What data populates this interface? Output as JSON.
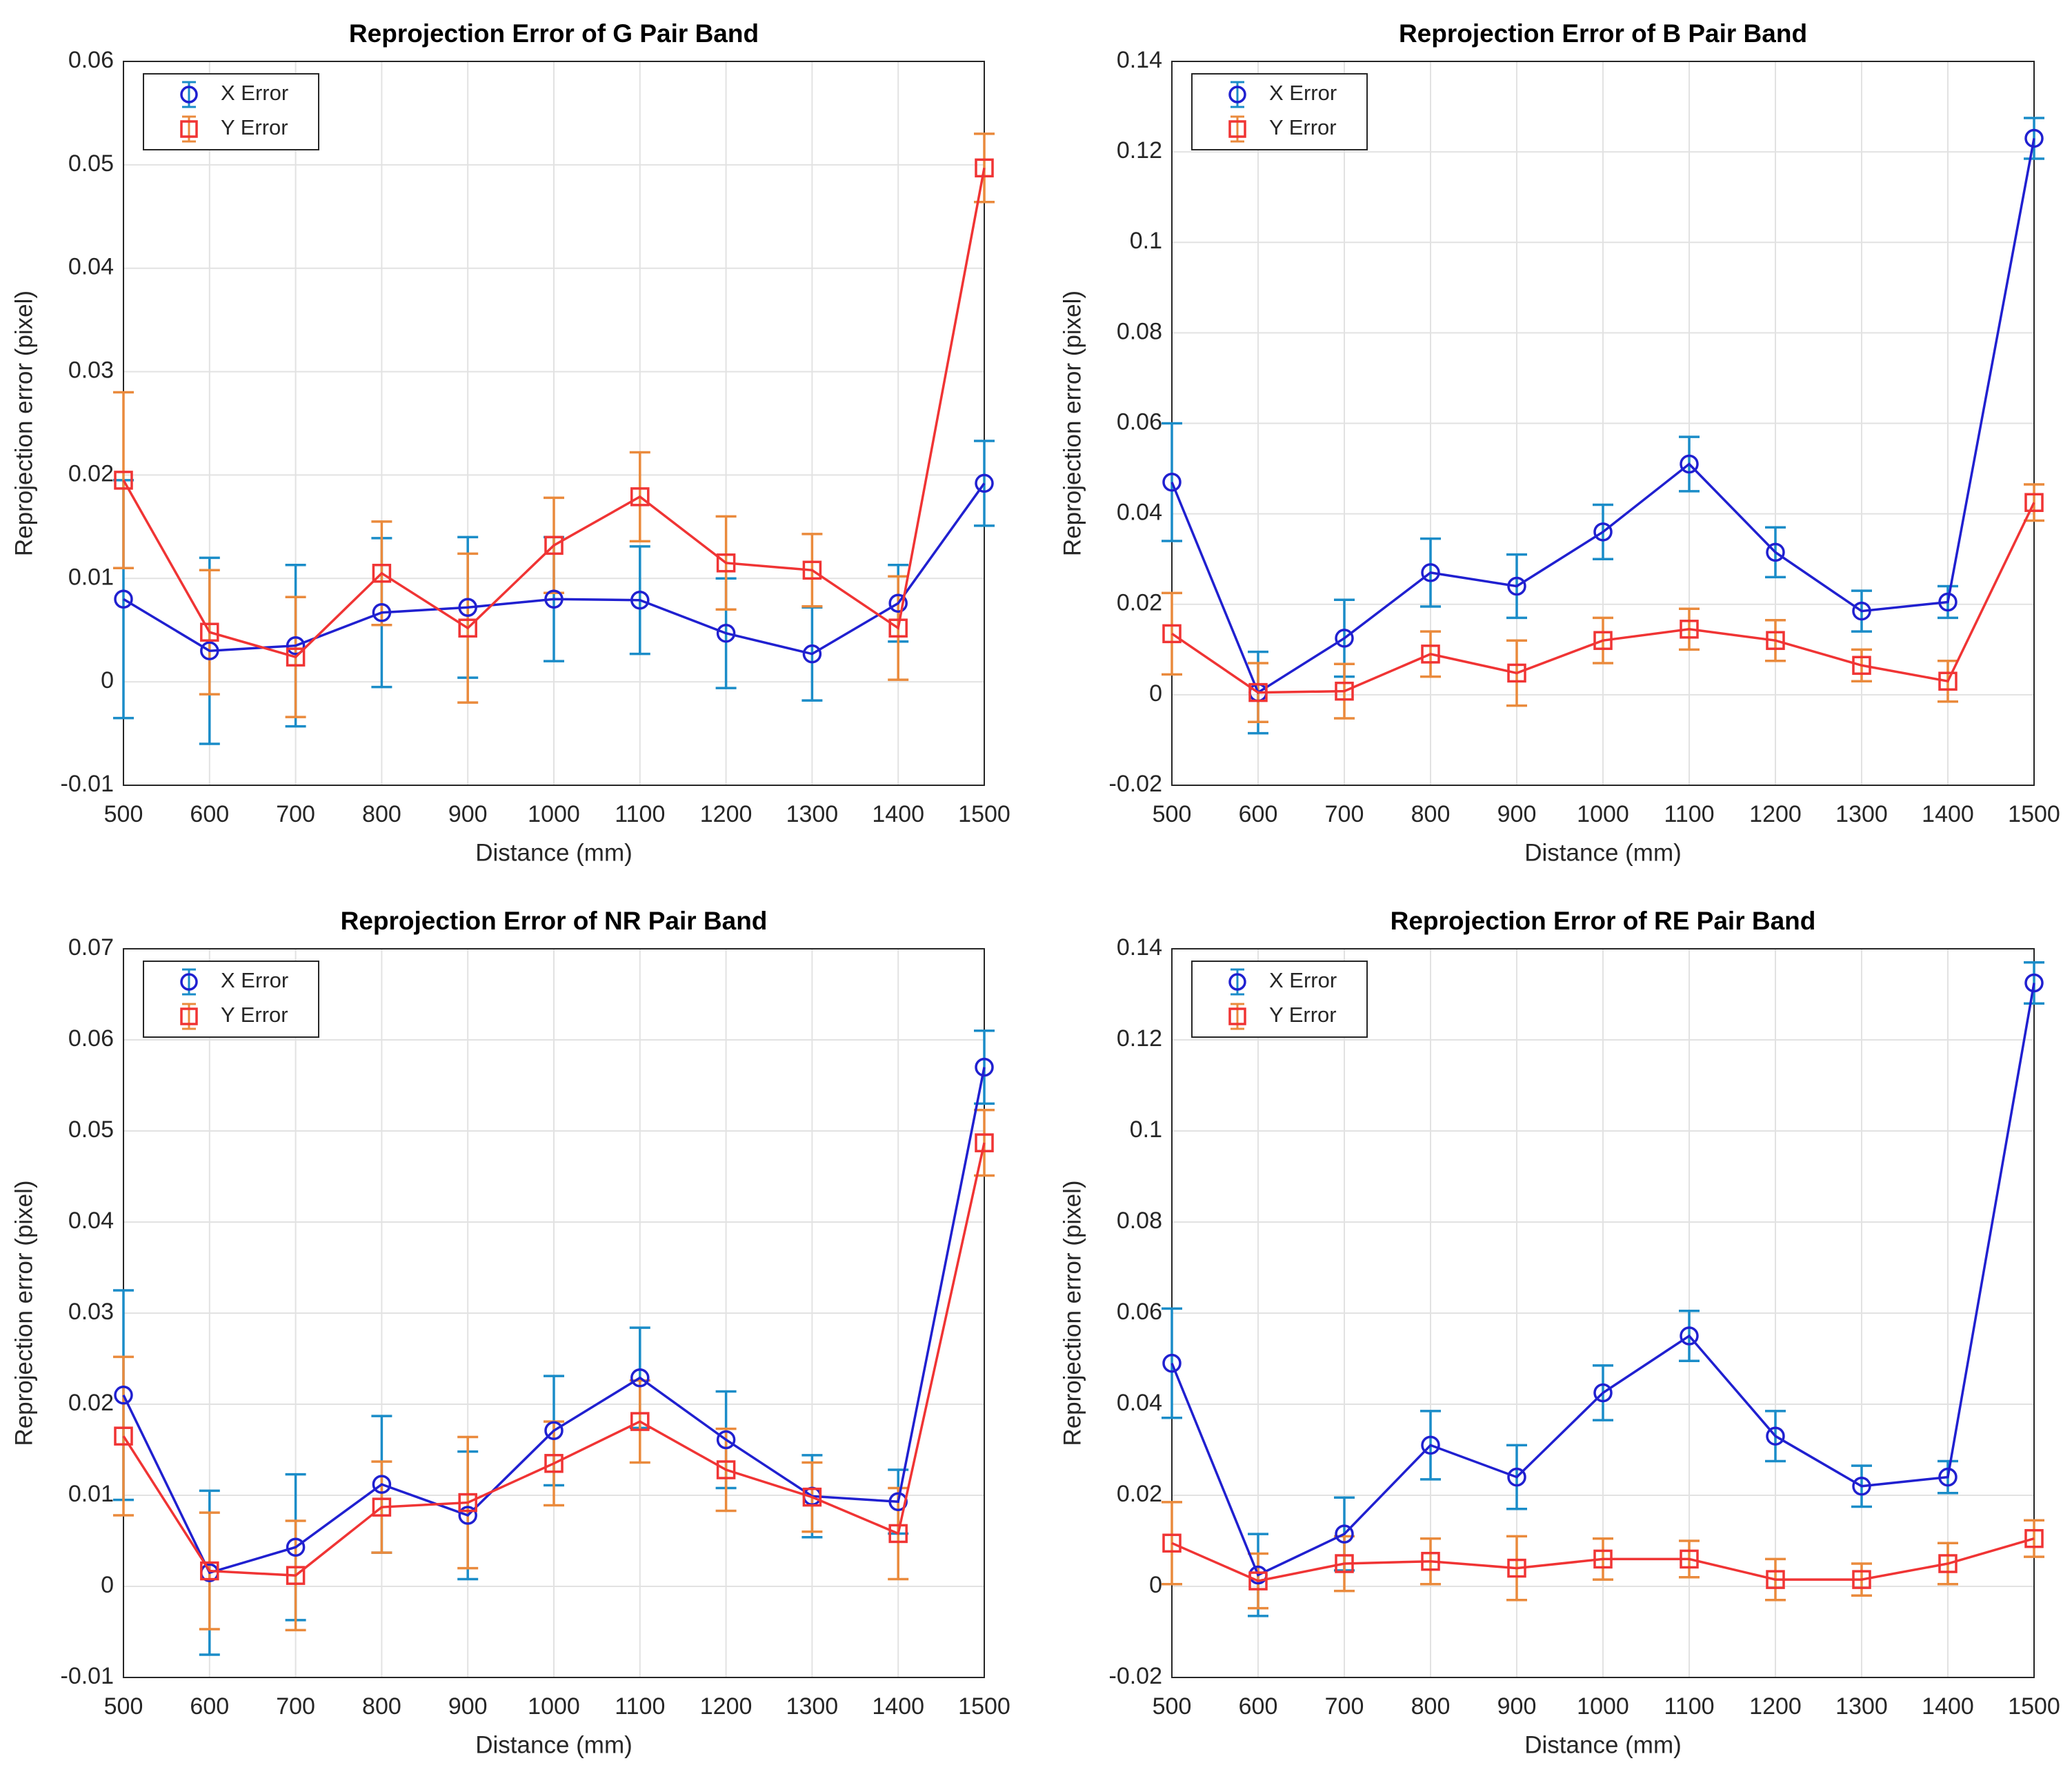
{
  "chart_data": [
    {
      "type": "errorbar",
      "title": "Reprojection Error of G Pair Band",
      "x_label": "Distance (mm)",
      "y_label": "Reprojection error  (pixel)",
      "x": [
        500,
        600,
        700,
        800,
        900,
        1000,
        1100,
        1200,
        1300,
        1400,
        1500
      ],
      "xlim": [
        500,
        1500
      ],
      "xticks": [
        500,
        600,
        700,
        800,
        900,
        1000,
        1100,
        1200,
        1300,
        1400,
        1500
      ],
      "ylim": [
        -0.01,
        0.06
      ],
      "yticks": [
        -0.01,
        0,
        0.01,
        0.02,
        0.03,
        0.04,
        0.05,
        0.06
      ],
      "grid": true,
      "legend": "upper left",
      "series": [
        {
          "name": "X Error",
          "color": "#2020d0",
          "error_color": "#1a8cc8",
          "marker": "o",
          "values": [
            0.008,
            0.003,
            0.0035,
            0.0067,
            0.0072,
            0.008,
            0.0079,
            0.0047,
            0.0027,
            0.0076,
            0.0192
          ],
          "errors": [
            0.0115,
            0.009,
            0.0078,
            0.0072,
            0.0068,
            0.006,
            0.0052,
            0.0053,
            0.0045,
            0.0037,
            0.0041
          ]
        },
        {
          "name": "Y Error",
          "color": "#f03434",
          "error_color": "#ea8a3c",
          "marker": "s",
          "values": [
            0.0195,
            0.0048,
            0.0024,
            0.0105,
            0.0052,
            0.0132,
            0.0179,
            0.0115,
            0.0108,
            0.0052,
            0.0497
          ],
          "errors": [
            0.0085,
            0.006,
            0.0058,
            0.005,
            0.0072,
            0.0046,
            0.0043,
            0.0045,
            0.0035,
            0.005,
            0.0033
          ]
        }
      ]
    },
    {
      "type": "errorbar",
      "title": "Reprojection Error of B Pair Band",
      "x_label": "Distance (mm)",
      "y_label": "Reprojection error  (pixel)",
      "x": [
        500,
        600,
        700,
        800,
        900,
        1000,
        1100,
        1200,
        1300,
        1400,
        1500
      ],
      "xlim": [
        500,
        1500
      ],
      "xticks": [
        500,
        600,
        700,
        800,
        900,
        1000,
        1100,
        1200,
        1300,
        1400,
        1500
      ],
      "ylim": [
        -0.02,
        0.14
      ],
      "yticks": [
        -0.02,
        0,
        0.02,
        0.04,
        0.06,
        0.08,
        0.1,
        0.12,
        0.14
      ],
      "grid": true,
      "legend": "upper left",
      "series": [
        {
          "name": "X Error",
          "color": "#2020d0",
          "error_color": "#1a8cc8",
          "marker": "o",
          "values": [
            0.047,
            0.0005,
            0.0125,
            0.027,
            0.024,
            0.036,
            0.051,
            0.0315,
            0.0185,
            0.0205,
            0.123
          ],
          "errors": [
            0.013,
            0.009,
            0.0085,
            0.0075,
            0.007,
            0.006,
            0.006,
            0.0055,
            0.0045,
            0.0035,
            0.0045
          ]
        },
        {
          "name": "Y Error",
          "color": "#f03434",
          "error_color": "#ea8a3c",
          "marker": "s",
          "values": [
            0.0135,
            0.0005,
            0.0008,
            0.009,
            0.0048,
            0.012,
            0.0145,
            0.012,
            0.0065,
            0.003,
            0.0425
          ],
          "errors": [
            0.009,
            0.0065,
            0.006,
            0.005,
            0.0072,
            0.005,
            0.0045,
            0.0045,
            0.0035,
            0.0045,
            0.004
          ]
        }
      ]
    },
    {
      "type": "errorbar",
      "title": "Reprojection Error of NR Pair Band",
      "x_label": "Distance (mm)",
      "y_label": "Reprojection error  (pixel)",
      "x": [
        500,
        600,
        700,
        800,
        900,
        1000,
        1100,
        1200,
        1300,
        1400,
        1500
      ],
      "xlim": [
        500,
        1500
      ],
      "xticks": [
        500,
        600,
        700,
        800,
        900,
        1000,
        1100,
        1200,
        1300,
        1400,
        1500
      ],
      "ylim": [
        -0.01,
        0.07
      ],
      "yticks": [
        -0.01,
        0,
        0.01,
        0.02,
        0.03,
        0.04,
        0.05,
        0.06,
        0.07
      ],
      "grid": true,
      "legend": "upper left",
      "series": [
        {
          "name": "X Error",
          "color": "#2020d0",
          "error_color": "#1a8cc8",
          "marker": "o",
          "values": [
            0.021,
            0.0015,
            0.0043,
            0.0112,
            0.0078,
            0.0171,
            0.0229,
            0.0161,
            0.0099,
            0.0093,
            0.057
          ],
          "errors": [
            0.0115,
            0.009,
            0.008,
            0.0075,
            0.007,
            0.006,
            0.0055,
            0.0053,
            0.0045,
            0.0035,
            0.004
          ]
        },
        {
          "name": "Y Error",
          "color": "#f03434",
          "error_color": "#ea8a3c",
          "marker": "s",
          "values": [
            0.0165,
            0.0017,
            0.0012,
            0.0087,
            0.0092,
            0.0135,
            0.0181,
            0.0128,
            0.0098,
            0.0058,
            0.0487
          ],
          "errors": [
            0.0087,
            0.0064,
            0.006,
            0.005,
            0.0072,
            0.0046,
            0.0045,
            0.0045,
            0.0038,
            0.005,
            0.0036
          ]
        }
      ]
    },
    {
      "type": "errorbar",
      "title": "Reprojection Error of RE Pair Band",
      "x_label": "Distance (mm)",
      "y_label": "Reprojection error  (pixel)",
      "x": [
        500,
        600,
        700,
        800,
        900,
        1000,
        1100,
        1200,
        1300,
        1400,
        1500
      ],
      "xlim": [
        500,
        1500
      ],
      "xticks": [
        500,
        600,
        700,
        800,
        900,
        1000,
        1100,
        1200,
        1300,
        1400,
        1500
      ],
      "ylim": [
        -0.02,
        0.14
      ],
      "yticks": [
        -0.02,
        0,
        0.02,
        0.04,
        0.06,
        0.08,
        0.1,
        0.12,
        0.14
      ],
      "grid": true,
      "legend": "upper left",
      "series": [
        {
          "name": "X Error",
          "color": "#2020d0",
          "error_color": "#1a8cc8",
          "marker": "o",
          "values": [
            0.049,
            0.0025,
            0.0115,
            0.031,
            0.024,
            0.0425,
            0.055,
            0.033,
            0.022,
            0.024,
            0.1325
          ],
          "errors": [
            0.012,
            0.009,
            0.008,
            0.0075,
            0.007,
            0.006,
            0.0055,
            0.0055,
            0.0045,
            0.0035,
            0.0045
          ]
        },
        {
          "name": "Y Error",
          "color": "#f03434",
          "error_color": "#ea8a3c",
          "marker": "s",
          "values": [
            0.0095,
            0.0012,
            0.005,
            0.0055,
            0.004,
            0.006,
            0.006,
            0.0015,
            0.0015,
            0.005,
            0.0105
          ],
          "errors": [
            0.009,
            0.006,
            0.006,
            0.005,
            0.007,
            0.0045,
            0.004,
            0.0045,
            0.0035,
            0.0045,
            0.004
          ]
        }
      ]
    }
  ]
}
